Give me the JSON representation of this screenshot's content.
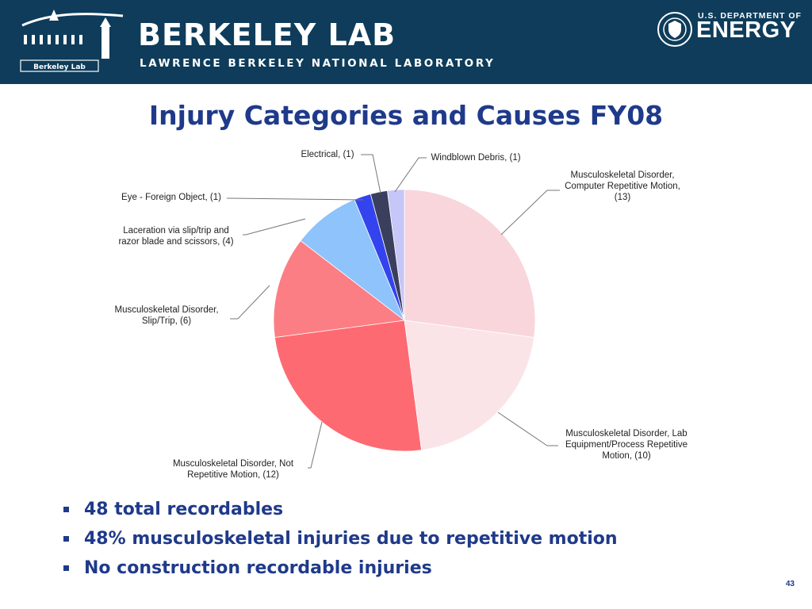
{
  "header": {
    "logo_text": "Berkeley Lab",
    "title": "BERKELEY LAB",
    "subtitle": "LAWRENCE BERKELEY NATIONAL LABORATORY",
    "doe_top": "U.S. DEPARTMENT OF",
    "doe_main": "ENERGY"
  },
  "slide": {
    "title": "Injury Categories and Causes FY08",
    "bullets": [
      "48 total recordables",
      "48% musculoskeletal injuries due to repetitive motion",
      "No construction recordable injuries"
    ],
    "page_number": "43"
  },
  "chart_data": {
    "type": "pie",
    "title": "",
    "total": 48,
    "slices": [
      {
        "label": [
          "Musculoskeletal Disorder,",
          "Computer Repetitive Motion,",
          "(13)"
        ],
        "value": 13,
        "color": "#f8d6dc"
      },
      {
        "label": [
          "Musculoskeletal Disorder, Lab",
          "Equipment/Process Repetitive",
          "Motion, (10)"
        ],
        "value": 10,
        "color": "#fbe4e7"
      },
      {
        "label": [
          "Musculoskeletal Disorder, Not",
          "Repetitive Motion, (12)"
        ],
        "value": 12,
        "color": "#fe6a72"
      },
      {
        "label": [
          "Musculoskeletal Disorder,",
          "Slip/Trip, (6)"
        ],
        "value": 6,
        "color": "#fb7e84"
      },
      {
        "label": [
          "Laceration via slip/trip and",
          "razor blade and scissors, (4)"
        ],
        "value": 4,
        "color": "#8ec3fb"
      },
      {
        "label": [
          "Eye - Foreign Object, (1)"
        ],
        "value": 1,
        "color": "#3344ee"
      },
      {
        "label": [
          "Electrical, (1)"
        ],
        "value": 1,
        "color": "#3b3f5e"
      },
      {
        "label": [
          "Windblown Debris, (1)"
        ],
        "value": 1,
        "color": "#c6c6f8"
      }
    ]
  }
}
